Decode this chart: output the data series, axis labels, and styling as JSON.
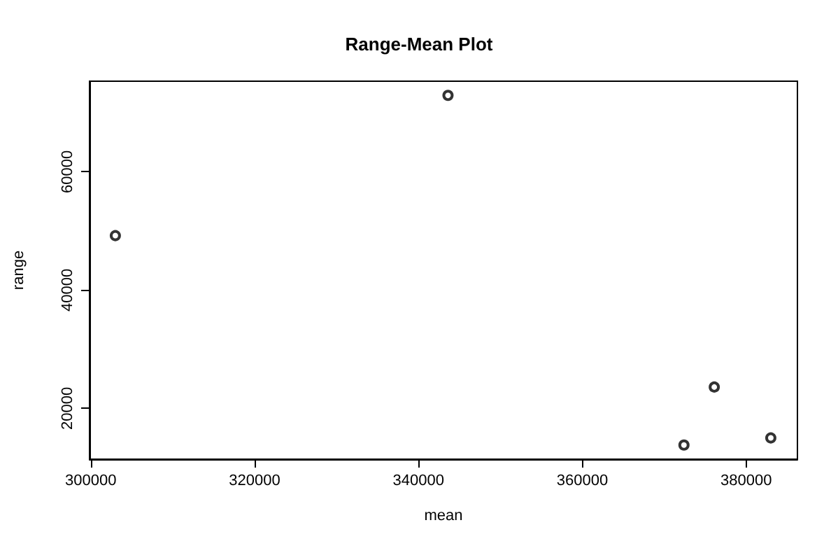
{
  "chart_data": {
    "type": "scatter",
    "title": "Range-Mean Plot",
    "xlabel": "mean",
    "ylabel": "range",
    "x": [
      303000,
      343600,
      372400,
      376100,
      383000
    ],
    "values": [
      49200,
      72900,
      13800,
      23600,
      15000
    ],
    "color": "#000000",
    "marker": "circle",
    "xlim": [
      299850,
      386250
    ],
    "xticks": [
      300000,
      320000,
      340000,
      360000,
      380000
    ],
    "ylim": [
      11400,
      75300
    ],
    "yticks": [
      20000,
      40000,
      60000
    ],
    "grid": false
  }
}
